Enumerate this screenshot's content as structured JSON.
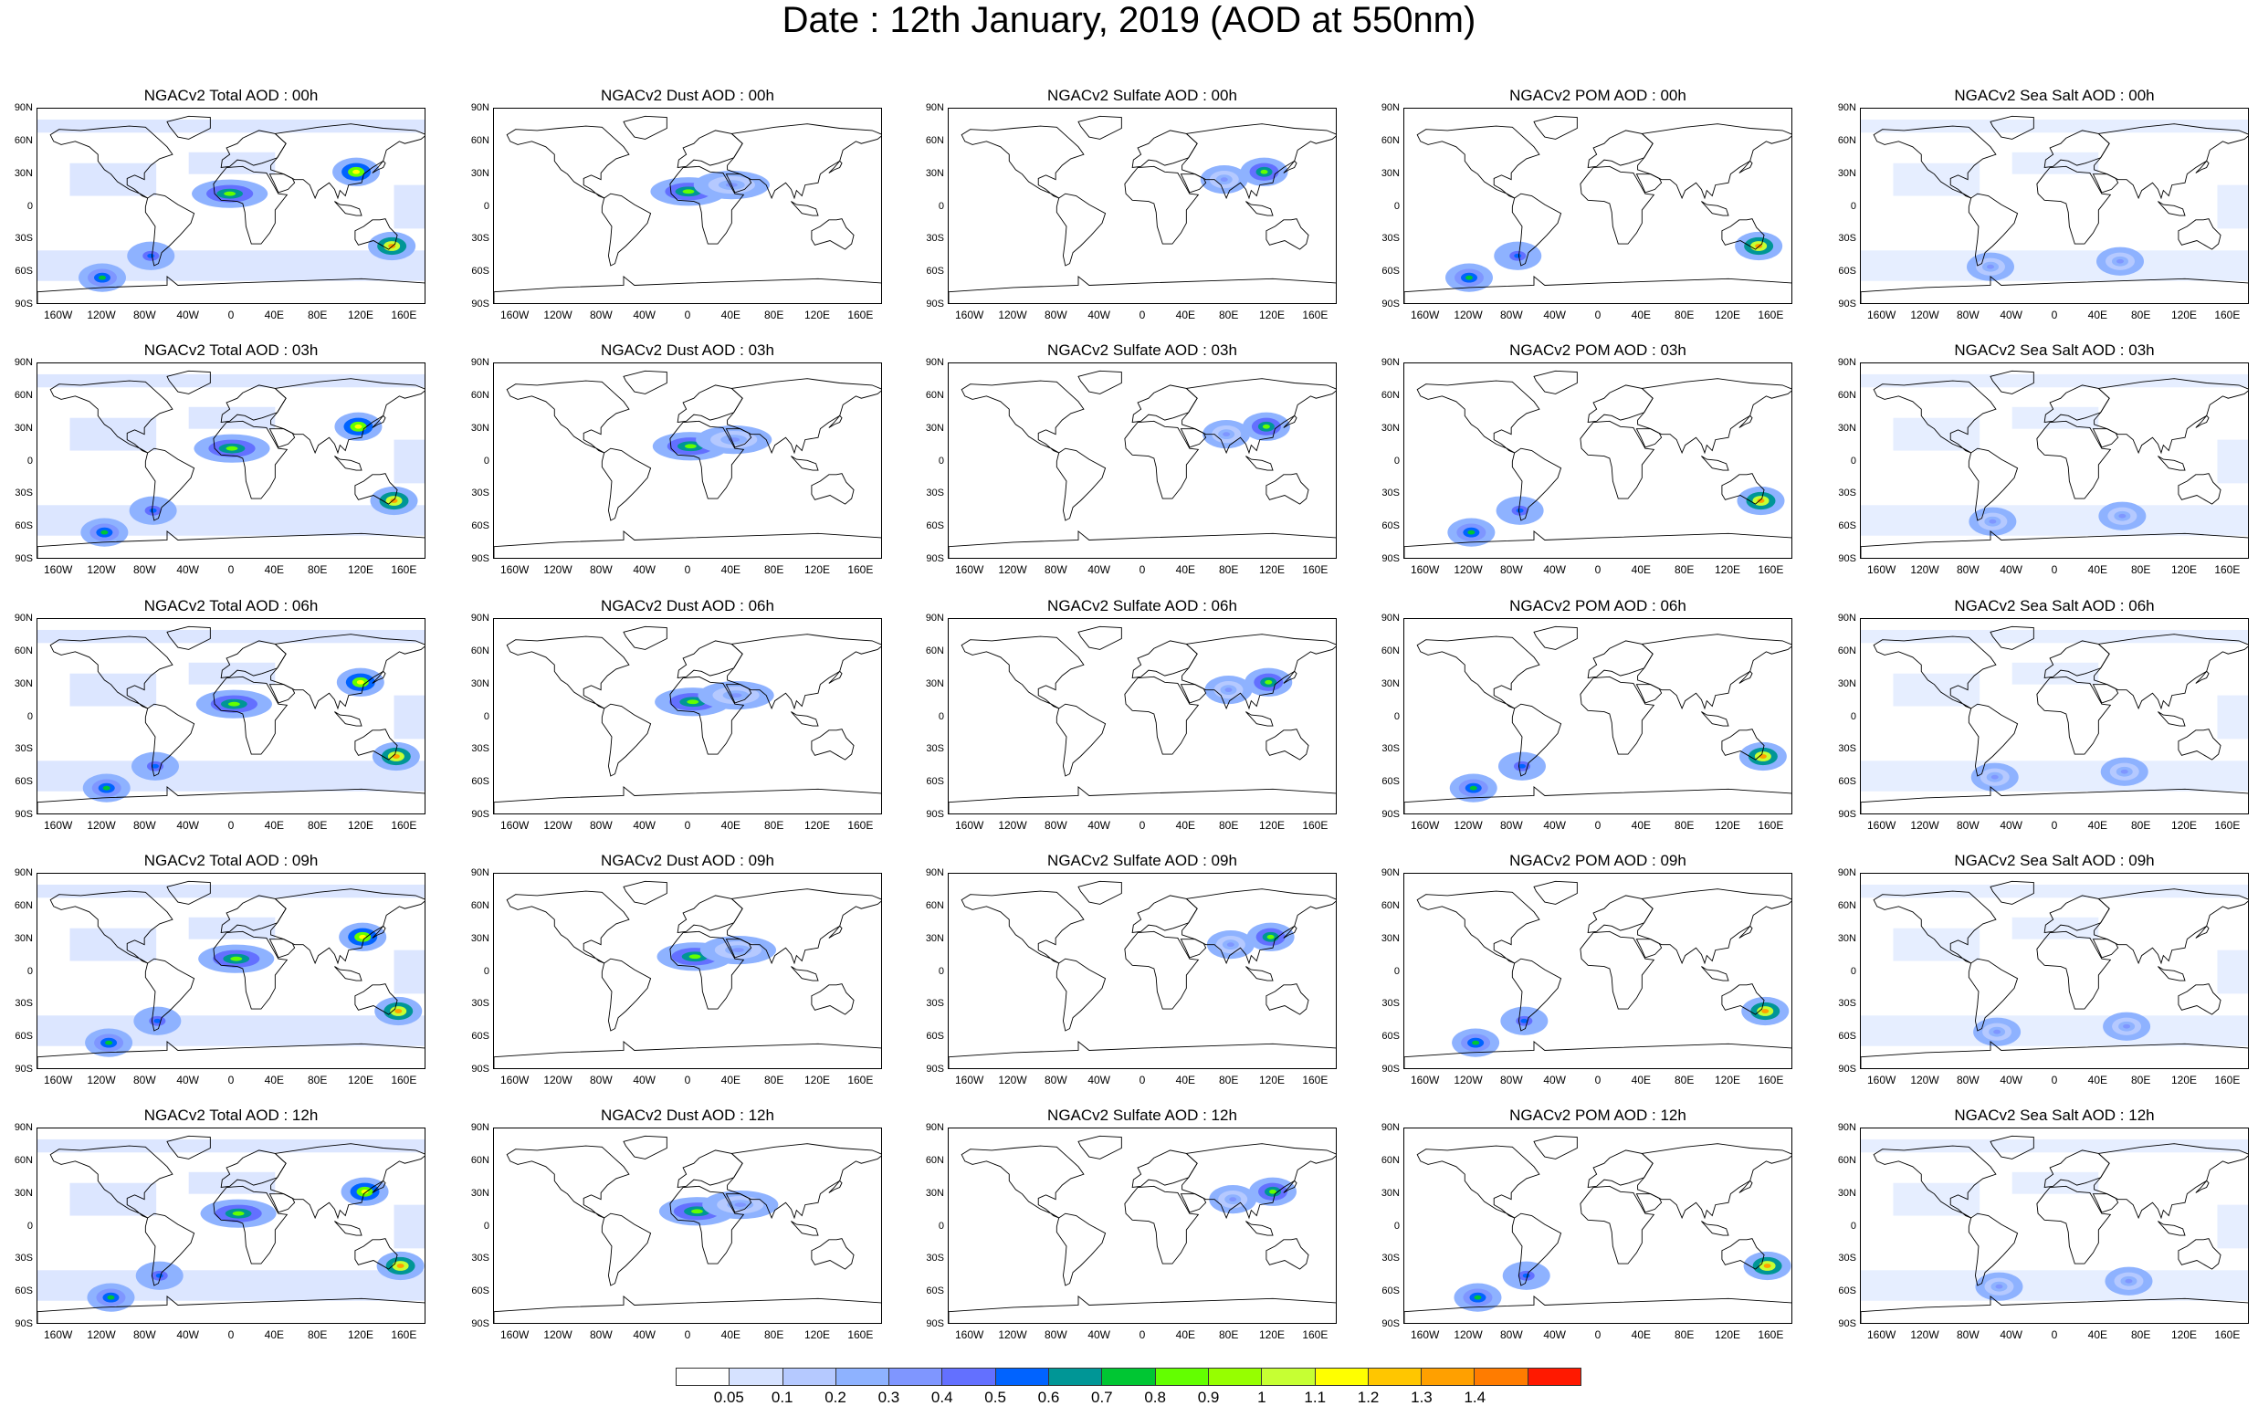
{
  "title": "Date : 12th January, 2019 (AOD at 550nm)",
  "rows": [
    {
      "hour": "00h",
      "panels": [
        "NGACv2 Total AOD : 00h",
        "NGACv2 Dust AOD : 00h",
        "NGACv2 Sulfate AOD : 00h",
        "NGACv2 POM AOD : 00h",
        "NGACv2 Sea Salt AOD : 00h"
      ]
    },
    {
      "hour": "03h",
      "panels": [
        "NGACv2 Total AOD : 03h",
        "NGACv2 Dust AOD : 03h",
        "NGACv2 Sulfate AOD : 03h",
        "NGACv2 POM AOD : 03h",
        "NGACv2 Sea Salt AOD : 03h"
      ]
    },
    {
      "hour": "06h",
      "panels": [
        "NGACv2 Total AOD : 06h",
        "NGACv2 Dust AOD : 06h",
        "NGACv2 Sulfate AOD : 06h",
        "NGACv2 POM AOD : 06h",
        "NGACv2 Sea Salt AOD : 06h"
      ]
    },
    {
      "hour": "09h",
      "panels": [
        "NGACv2 Total AOD : 09h",
        "NGACv2 Dust AOD : 09h",
        "NGACv2 Sulfate AOD : 09h",
        "NGACv2 POM AOD : 09h",
        "NGACv2 Sea Salt  AOD : 09h"
      ]
    },
    {
      "hour": "12h",
      "panels": [
        "NGACv2 Total AOD  : 12h",
        "NGACv2 Dust AOD : 12h",
        "NGACv2 Sulfate AOD : 12h",
        "NGACv2 POM  AOD : 12h",
        "NGACv2 Sea Salt AOD : 12h"
      ]
    }
  ],
  "species": [
    "total",
    "dust",
    "sulfate",
    "pom",
    "seasalt"
  ],
  "lat_ticks": [
    "90N",
    "60N",
    "30N",
    "0",
    "30S",
    "60S",
    "90S"
  ],
  "lat_values": [
    90,
    60,
    30,
    0,
    -30,
    -60,
    -90
  ],
  "lon_ticks": [
    "160W",
    "120W",
    "80W",
    "40W",
    "0",
    "40E",
    "80E",
    "120E",
    "160E"
  ],
  "lon_values": [
    -160,
    -120,
    -80,
    -40,
    0,
    40,
    80,
    120,
    160
  ],
  "colorbar": {
    "labels": [
      "0.05",
      "0.1",
      "0.2",
      "0.3",
      "0.4",
      "0.5",
      "0.6",
      "0.7",
      "0.8",
      "0.9",
      "1",
      "1.1",
      "1.2",
      "1.3",
      "1.4"
    ],
    "colors": [
      "#ffffff",
      "#d6e2ff",
      "#b5c9ff",
      "#8eb2ff",
      "#7f96ff",
      "#6370ff",
      "#0063ff",
      "#009696",
      "#00c633",
      "#63ff00",
      "#96ff00",
      "#c6ff33",
      "#ffff00",
      "#ffc600",
      "#ffa000",
      "#ff7c00",
      "#ff1900"
    ]
  },
  "hotspots": {
    "total": [
      {
        "lon": -2,
        "lat": 12,
        "v": 0.8
      },
      {
        "lon": 115,
        "lat": 32,
        "v": 1.1
      },
      {
        "lon": 148,
        "lat": -36,
        "v": 1.3
      },
      {
        "lon": -75,
        "lat": -45,
        "v": 0.5
      },
      {
        "lon": -120,
        "lat": -65,
        "v": 0.7
      }
    ],
    "dust": [
      {
        "lon": 0,
        "lat": 14,
        "v": 0.8
      },
      {
        "lon": 40,
        "lat": 20,
        "v": 0.3
      }
    ],
    "sulfate": [
      {
        "lon": 112,
        "lat": 32,
        "v": 0.8
      },
      {
        "lon": 75,
        "lat": 25,
        "v": 0.3
      }
    ],
    "pom": [
      {
        "lon": 148,
        "lat": -36,
        "v": 1.3
      },
      {
        "lon": -75,
        "lat": -45,
        "v": 0.5
      },
      {
        "lon": -120,
        "lat": -65,
        "v": 0.7
      }
    ],
    "seasalt": [
      {
        "lon": 60,
        "lat": -50,
        "v": 0.3
      },
      {
        "lon": -60,
        "lat": -55,
        "v": 0.3
      }
    ]
  }
}
